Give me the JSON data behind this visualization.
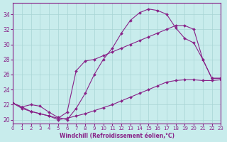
{
  "xlabel": "Windchill (Refroidissement éolien,°C)",
  "ylabel": "",
  "bg_color": "#c8ecec",
  "grid_color": "#a8d4d4",
  "line_color": "#882288",
  "marker_color": "#882288",
  "xlim": [
    0,
    23
  ],
  "ylim": [
    19.5,
    35.5
  ],
  "yticks": [
    20,
    22,
    24,
    26,
    28,
    30,
    32,
    34
  ],
  "xticks": [
    0,
    1,
    2,
    3,
    4,
    5,
    6,
    7,
    8,
    9,
    10,
    11,
    12,
    13,
    14,
    15,
    16,
    17,
    18,
    19,
    20,
    21,
    22,
    23
  ],
  "lines": [
    {
      "x": [
        0,
        1,
        2,
        3,
        4,
        5,
        6,
        7,
        8,
        9,
        10,
        11,
        12,
        13,
        14,
        15,
        16,
        17,
        18,
        19,
        20,
        21,
        22,
        23
      ],
      "y": [
        22.2,
        21.7,
        22.0,
        21.8,
        21.0,
        20.3,
        20.0,
        21.5,
        23.5,
        26.0,
        28.0,
        29.5,
        31.5,
        33.2,
        34.2,
        34.7,
        34.5,
        34.0,
        32.2,
        30.8,
        30.2,
        28.0,
        25.5,
        25.5
      ]
    },
    {
      "x": [
        0,
        1,
        2,
        3,
        4,
        5,
        6,
        7,
        8,
        9,
        10,
        11,
        12,
        13,
        14,
        15,
        16,
        17,
        18,
        19,
        20,
        21,
        22,
        23
      ],
      "y": [
        22.2,
        21.7,
        21.1,
        20.8,
        20.5,
        20.2,
        21.0,
        26.5,
        27.8,
        28.0,
        28.5,
        29.0,
        29.5,
        30.0,
        30.5,
        31.0,
        31.5,
        32.0,
        32.5,
        32.5,
        32.0,
        28.0,
        25.5,
        25.5
      ]
    },
    {
      "x": [
        0,
        1,
        2,
        3,
        4,
        5,
        6,
        7,
        8,
        9,
        10,
        11,
        12,
        13,
        14,
        15,
        16,
        17,
        18,
        19,
        20,
        21,
        22,
        23
      ],
      "y": [
        22.2,
        21.5,
        21.1,
        20.8,
        20.5,
        20.0,
        20.2,
        20.5,
        20.8,
        21.2,
        21.6,
        22.0,
        22.5,
        23.0,
        23.5,
        24.0,
        24.5,
        25.0,
        25.2,
        25.3,
        25.3,
        25.2,
        25.2,
        25.3
      ]
    }
  ]
}
